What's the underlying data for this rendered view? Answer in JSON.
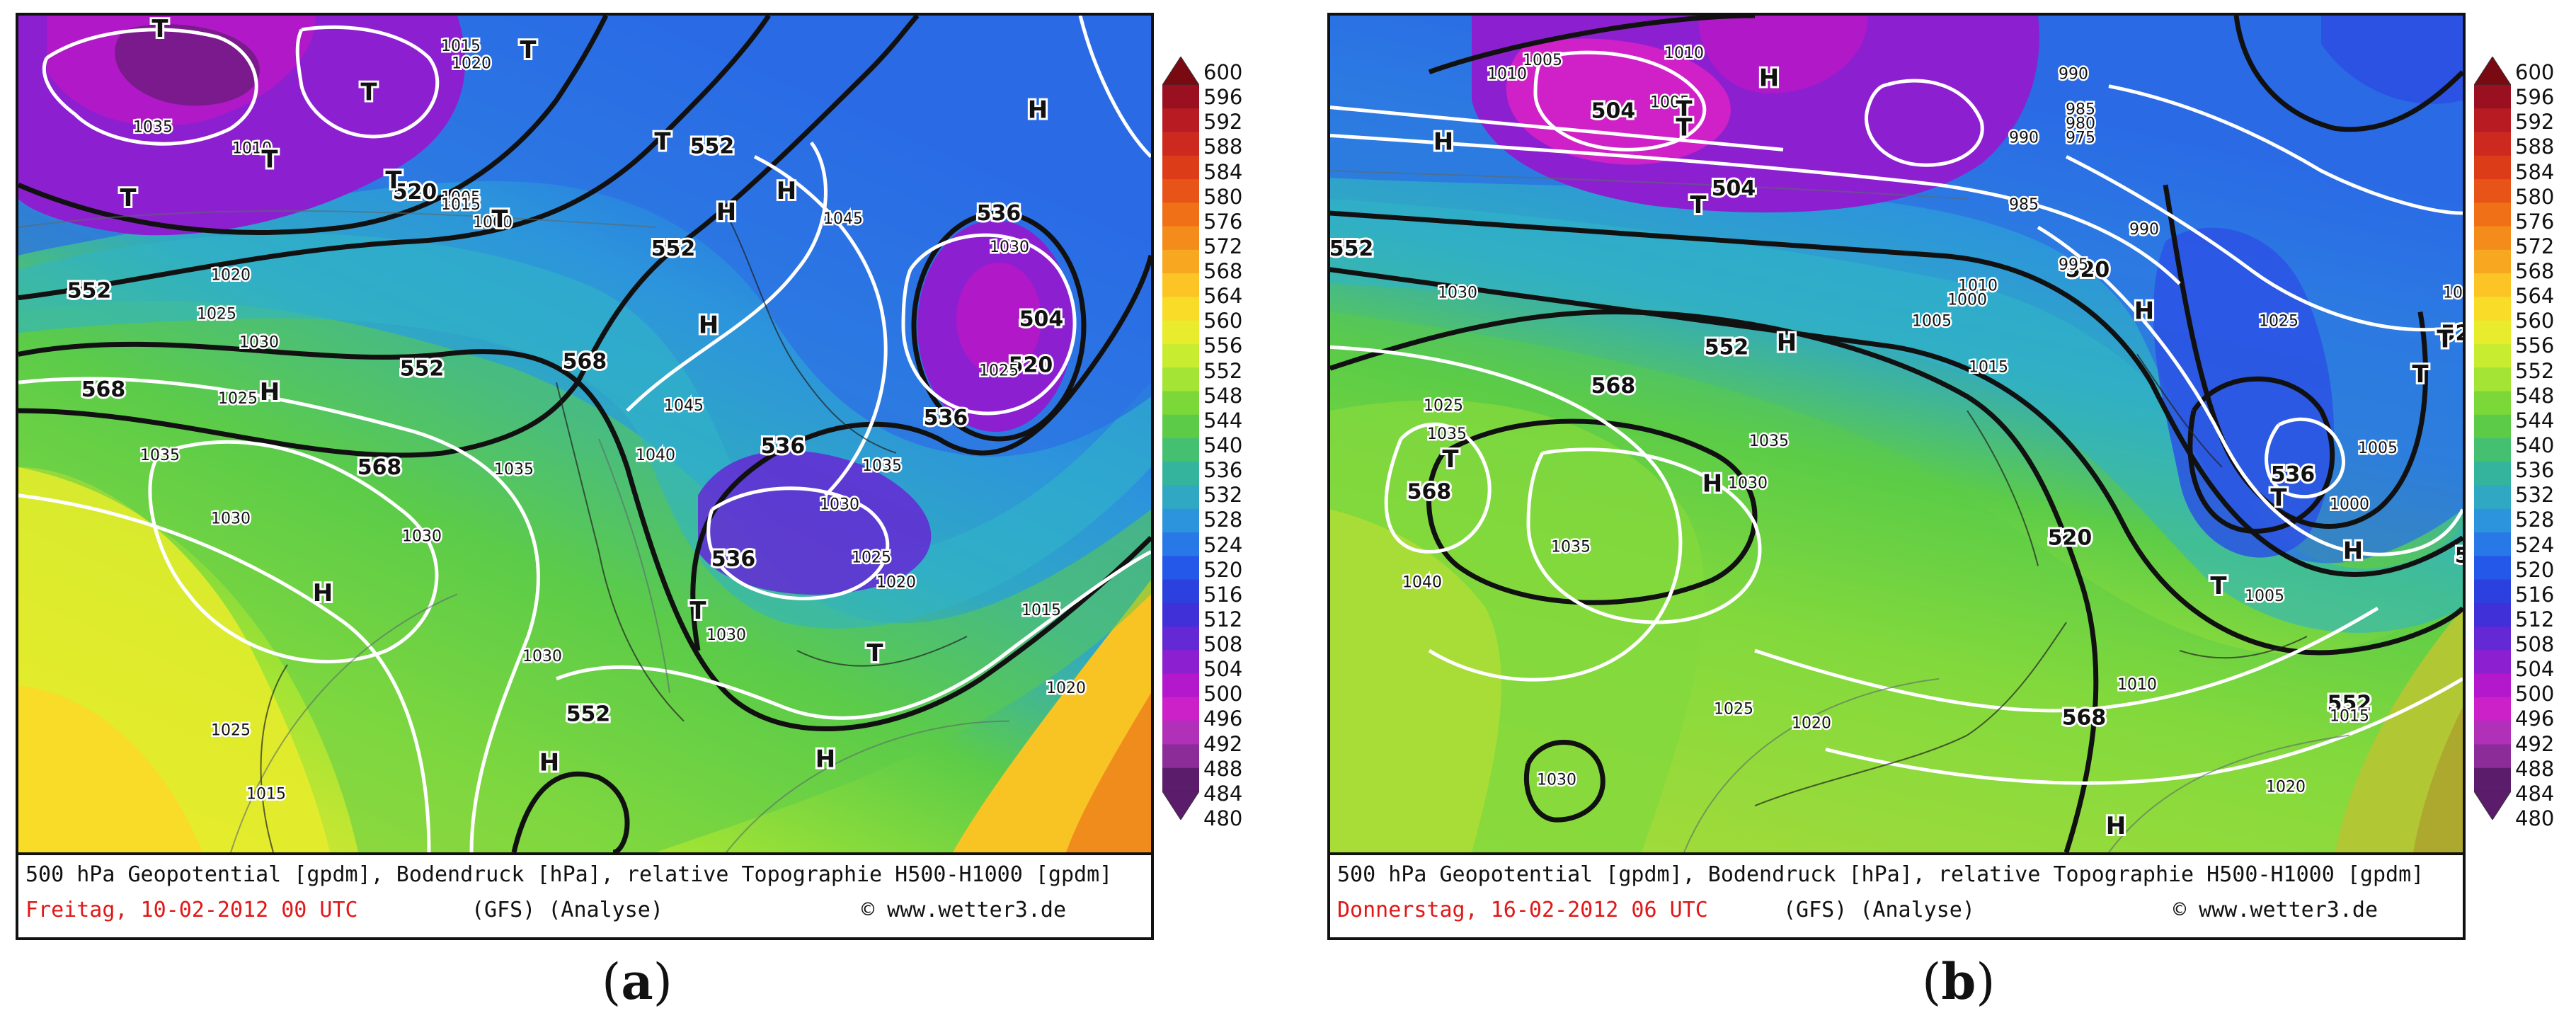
{
  "panels": [
    {
      "id": "a",
      "sublabel_open": "(",
      "sublabel_letter": "a",
      "sublabel_close": ")",
      "caption_line1": "500 hPa Geopotential [gpdm], Bodendruck [hPa], relative Topographie H500-H1000 [gpdm]",
      "caption_date": "Freitag, 10-02-2012  00 UTC",
      "caption_model": "(GFS)  (Analyse)",
      "caption_copyright": "© www.wetter3.de",
      "geopotential_labels": [
        "504",
        "520",
        "520",
        "536",
        "536",
        "536",
        "536",
        "552",
        "552",
        "552",
        "552",
        "552",
        "568",
        "568",
        "568"
      ],
      "pressure_labels": [
        "1035",
        "1020",
        "1015",
        "1010",
        "1000",
        "1005",
        "1015",
        "1025",
        "1030",
        "1020",
        "1035",
        "1030",
        "1030",
        "1040",
        "1045",
        "1045",
        "1025",
        "1035",
        "1030",
        "1020",
        "1015",
        "1030",
        "1030",
        "1025",
        "1025",
        "1020",
        "1015",
        "1030",
        "1035",
        "1025"
      ],
      "high_marks": [
        "H",
        "H",
        "H",
        "H",
        "H",
        "H",
        "H",
        "H"
      ],
      "low_marks": [
        "T",
        "T",
        "T",
        "T",
        "T",
        "T",
        "T",
        "T",
        "T",
        "T"
      ]
    },
    {
      "id": "b",
      "sublabel_open": "(",
      "sublabel_letter": "b",
      "sublabel_close": ")",
      "caption_line1": "500 hPa Geopotential [gpdm], Bodendruck [hPa], relative Topographie H500-H1000 [gpdm]",
      "caption_date": "Donnerstag, 16-02-2012  06 UTC",
      "caption_model": "(GFS)  (Analyse)",
      "caption_copyright": "© www.wetter3.de",
      "geopotential_labels": [
        "504",
        "504",
        "520",
        "520",
        "520",
        "536",
        "536",
        "552",
        "552",
        "552",
        "568",
        "568",
        "568"
      ],
      "pressure_labels": [
        "1005",
        "1010",
        "1005",
        "1010",
        "990",
        "990",
        "985",
        "980",
        "975",
        "990",
        "985",
        "995",
        "1000",
        "1005",
        "1010",
        "1015",
        "1020",
        "1025",
        "1030",
        "1035",
        "1040",
        "1035",
        "1030",
        "1025",
        "1015",
        "1005",
        "1000",
        "1005",
        "1010",
        "1015",
        "1020",
        "1025",
        "1030",
        "1035"
      ],
      "high_marks": [
        "H",
        "H",
        "H",
        "H",
        "H",
        "H",
        "H"
      ],
      "low_marks": [
        "T",
        "T",
        "T",
        "T",
        "T",
        "T",
        "T",
        "T"
      ]
    }
  ],
  "colorbar": {
    "unit": "gpdm",
    "ticks": [
      "600",
      "596",
      "592",
      "588",
      "584",
      "580",
      "576",
      "572",
      "568",
      "564",
      "560",
      "556",
      "552",
      "548",
      "544",
      "540",
      "536",
      "532",
      "528",
      "524",
      "520",
      "516",
      "512",
      "508",
      "504",
      "500",
      "496",
      "492",
      "488",
      "484",
      "480"
    ],
    "colors": [
      "#7a0a12",
      "#9a1020",
      "#b81c22",
      "#cc2a1e",
      "#dc3c18",
      "#e85418",
      "#f07018",
      "#f48c1c",
      "#f8a820",
      "#fcc424",
      "#f8dc28",
      "#e8ec2c",
      "#c8ec30",
      "#a4e434",
      "#7cd838",
      "#5ccc48",
      "#44c070",
      "#34b49c",
      "#30a8c4",
      "#2c94dc",
      "#2878e8",
      "#2458e8",
      "#2c40e0",
      "#4030d8",
      "#6428d4",
      "#8c20d0",
      "#b418cc",
      "#cc20c8",
      "#b030b8",
      "#8c2c98",
      "#5c1c6c"
    ]
  }
}
